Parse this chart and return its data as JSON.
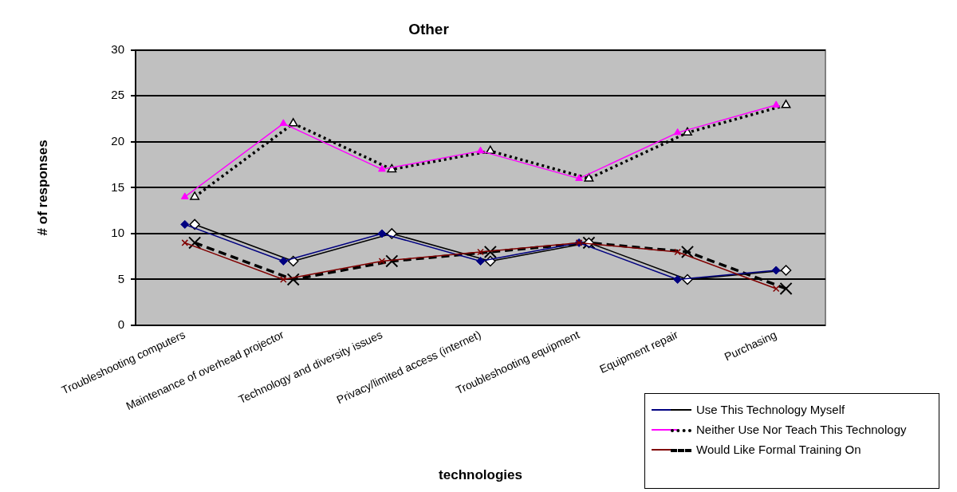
{
  "chart_data": {
    "type": "line",
    "title": "Other",
    "xlabel": "technologies",
    "ylabel": "# of responses",
    "categories": [
      "Troubleshooting computers",
      "Maintenance of overhead projector",
      "Technology and diversity issues",
      "Privacy/limited access (internet)",
      "Troubleshooting equipment",
      "Equipment repair",
      "Purchasing"
    ],
    "series": [
      {
        "name": "Use This Technology Myself",
        "color": "#000080",
        "marker": "diamond",
        "line_style": "solid",
        "values": [
          11,
          7,
          10,
          7,
          9,
          5,
          6
        ]
      },
      {
        "color": "#000000",
        "marker": "diamond",
        "line_style": "solid",
        "values": [
          11,
          7,
          10,
          7,
          9,
          5,
          6
        ]
      },
      {
        "name": "Neither Use Nor Teach This Technology",
        "color": "#ff00ff",
        "marker": "triangle",
        "line_style": "solid",
        "values": [
          14,
          22,
          17,
          19,
          16,
          21,
          24
        ]
      },
      {
        "color": "#000000",
        "marker": "triangle",
        "line_style": "dotted",
        "values": [
          14,
          22,
          17,
          19,
          16,
          21,
          24
        ]
      },
      {
        "name": "Would Like Formal Training On",
        "color": "#800000",
        "marker": "cross",
        "line_style": "solid",
        "values": [
          9,
          5,
          7,
          8,
          9,
          8,
          4
        ]
      },
      {
        "color": "#000000",
        "marker": "cross",
        "line_style": "dashed",
        "values": [
          9,
          5,
          7,
          8,
          9,
          8,
          4
        ]
      }
    ],
    "ylim": [
      0,
      30
    ],
    "yticks": [
      0,
      5,
      10,
      15,
      20,
      25,
      30
    ],
    "grid": "y",
    "legend": "bottom right"
  }
}
